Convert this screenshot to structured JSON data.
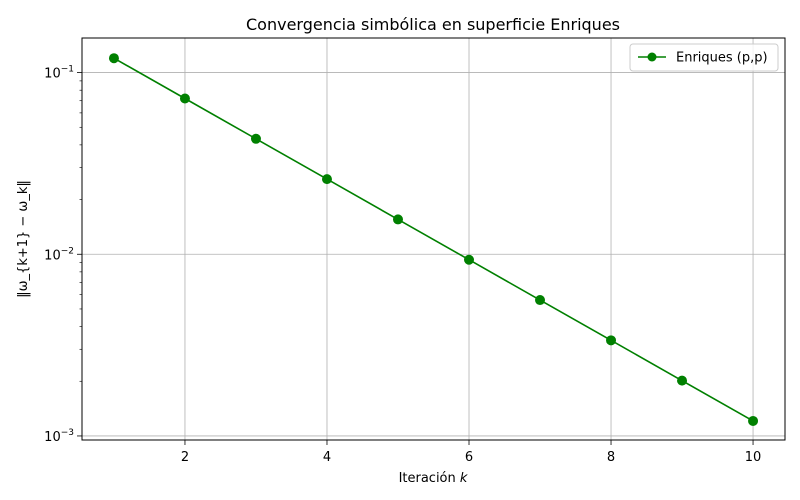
{
  "chart_data": {
    "type": "line",
    "title": "Convergencia simbólica en superficie Enriques",
    "xlabel_text": "Iteración ",
    "xlabel_var": "k",
    "ylabel": "‖ω_{k+1} − ω_k‖",
    "yscale": "log",
    "xlim": [
      0.55,
      10.45
    ],
    "ylim": [
      0.00095,
      0.155
    ],
    "xticks": [
      2,
      4,
      6,
      8,
      10
    ],
    "xtick_labels": [
      "2",
      "4",
      "6",
      "8",
      "10"
    ],
    "yticks": [
      0.001,
      0.01,
      0.1
    ],
    "ytick_labels": [
      {
        "base": "10",
        "exp": "−3"
      },
      {
        "base": "10",
        "exp": "−2"
      },
      {
        "base": "10",
        "exp": "−1"
      }
    ],
    "grid": true,
    "legend_position": "top-right",
    "series": [
      {
        "name": "Enriques (p,p)",
        "color": "#008000",
        "marker": "circle",
        "x": [
          1,
          2,
          3,
          4,
          5,
          6,
          7,
          8,
          9,
          10
        ],
        "y": [
          0.12,
          0.072,
          0.0432,
          0.02592,
          0.015552,
          0.0093312,
          0.00559872,
          0.003359232,
          0.0020155392,
          0.00120932352
        ]
      }
    ]
  }
}
